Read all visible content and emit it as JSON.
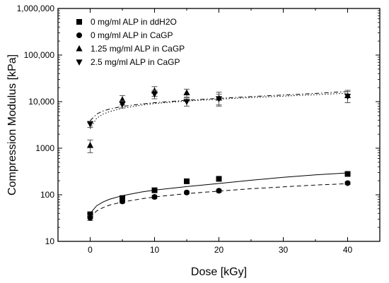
{
  "chart_data": {
    "type": "scatter",
    "xlabel": "Dose [kGy]",
    "ylabel": "Compression Modulus [kPa]",
    "xlim": [
      -5,
      45
    ],
    "ylim": [
      10,
      1000000
    ],
    "yscale": "log",
    "x_ticks": [
      0,
      10,
      20,
      30,
      40
    ],
    "x_tick_labels": [
      "0",
      "10",
      "20",
      "30",
      "40"
    ],
    "y_ticks": [
      10,
      100,
      1000,
      10000,
      100000,
      1000000
    ],
    "y_tick_labels": [
      "10",
      "100",
      "1000",
      "10,000",
      "100,000",
      "1,000,000"
    ],
    "grid": false,
    "legend_position": "top-left",
    "series": [
      {
        "name": "0 mg/ml ALP in ddH2O",
        "marker": "square",
        "color": "#000000",
        "x": [
          0,
          5,
          10,
          15,
          20,
          40
        ],
        "y": [
          38,
          85,
          125,
          195,
          220,
          280
        ],
        "err": [
          5,
          8,
          10,
          12,
          15,
          20
        ],
        "fit": {
          "style": "solid",
          "x": [
            0,
            1,
            2,
            3,
            5,
            8,
            10,
            15,
            20,
            25,
            30,
            35,
            40
          ],
          "y": [
            40,
            58,
            70,
            80,
            96,
            115,
            126,
            150,
            175,
            205,
            237,
            268,
            295
          ]
        }
      },
      {
        "name": "0 mg/ml ALP in CaGP",
        "marker": "circle",
        "color": "#000000",
        "x": [
          0,
          5,
          10,
          15,
          20,
          40
        ],
        "y": [
          32,
          72,
          90,
          112,
          122,
          178
        ],
        "err": [
          4,
          6,
          8,
          8,
          10,
          12
        ],
        "fit": {
          "style": "dashed",
          "x": [
            0,
            1,
            2,
            3,
            5,
            8,
            10,
            15,
            20,
            25,
            30,
            35,
            40
          ],
          "y": [
            32,
            45,
            53,
            60,
            70,
            82,
            90,
            106,
            120,
            135,
            148,
            162,
            173
          ]
        }
      },
      {
        "name": "1.25 mg/ml ALP in CaGP",
        "marker": "triangle-up",
        "color": "#000000",
        "x": [
          0,
          5,
          10,
          15,
          20,
          40
        ],
        "y": [
          1150,
          11000,
          17000,
          15500,
          12000,
          13500
        ],
        "err": [
          350,
          2500,
          4000,
          3000,
          4000,
          4000
        ],
        "fit": {
          "style": "dotted",
          "x": [
            0,
            1,
            2,
            3,
            5,
            8,
            10,
            15,
            20,
            25,
            30,
            35,
            40
          ],
          "y": [
            2600,
            4400,
            5400,
            6100,
            7200,
            8400,
            9100,
            10300,
            11300,
            12200,
            13100,
            14100,
            15200
          ]
        }
      },
      {
        "name": "2.5 mg/ml ALP in CaGP",
        "marker": "triangle-down",
        "color": "#000000",
        "x": [
          0,
          5,
          10,
          15,
          20,
          40
        ],
        "y": [
          3300,
          8800,
          14500,
          10000,
          11500,
          13000
        ],
        "err": [
          500,
          1500,
          3000,
          2000,
          3000,
          3500
        ],
        "fit": {
          "style": "dashdot",
          "x": [
            0,
            1,
            2,
            3,
            5,
            8,
            10,
            15,
            20,
            25,
            30,
            35,
            40
          ],
          "y": [
            3900,
            5400,
            6300,
            6900,
            7900,
            8900,
            9500,
            10700,
            11800,
            12800,
            13900,
            15000,
            16500
          ]
        }
      }
    ]
  }
}
